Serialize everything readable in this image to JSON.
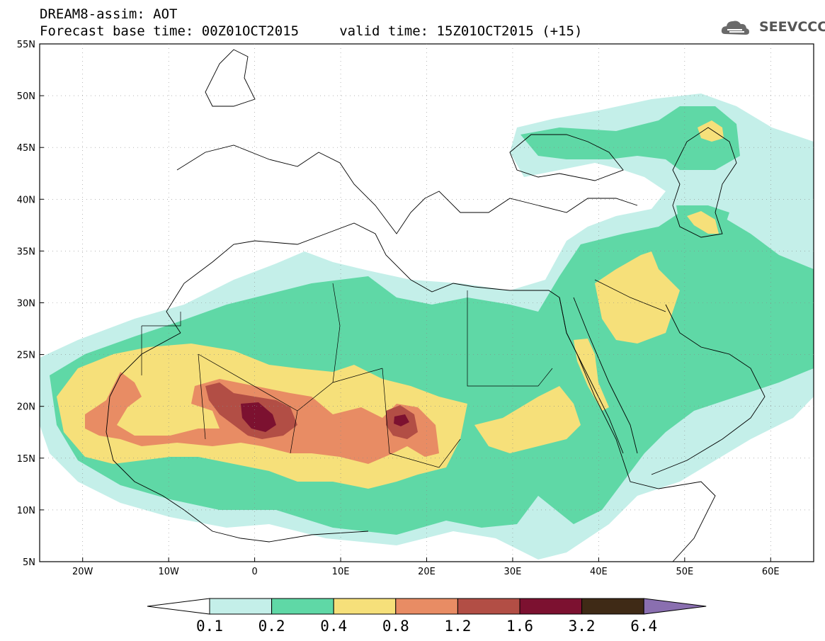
{
  "header": {
    "title_line1": "DREAM8-assim: AOT",
    "title_line2": "Forecast base time: 00Z01OCT2015     valid time: 15Z01OCT2015 (+15)",
    "logo_text": "SEEVCCC"
  },
  "map": {
    "lat_labels": [
      "55N",
      "50N",
      "45N",
      "40N",
      "35N",
      "30N",
      "25N",
      "20N",
      "15N",
      "10N",
      "5N"
    ],
    "lon_labels": [
      "20W",
      "10W",
      "0",
      "10E",
      "20E",
      "30E",
      "40E",
      "50E",
      "60E"
    ],
    "field": "AOT",
    "colors": {
      "0.1-0.2": "#c4efe9",
      "0.2-0.4": "#5fd8a6",
      "0.4-0.8": "#f6e07a",
      "0.8-1.2": "#e88c64",
      "1.2-1.6": "#b24e45",
      "1.6-3.2": "#7c1130",
      "3.2-6.4": "#3f2a16",
      ">6.4": "#8a6fb0"
    }
  },
  "colorbar": {
    "labels": [
      "0.1",
      "0.2",
      "0.4",
      "0.8",
      "1.2",
      "1.6",
      "3.2",
      "6.4"
    ],
    "colors": [
      "#c4efe9",
      "#5fd8a6",
      "#f6e07a",
      "#e88c64",
      "#b24e45",
      "#7c1130",
      "#3f2a16"
    ],
    "under_color": "#ffffff",
    "over_color": "#8a6fb0"
  }
}
